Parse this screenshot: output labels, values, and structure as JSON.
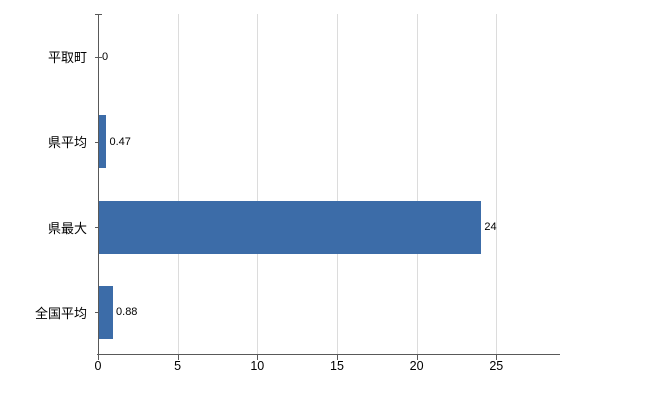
{
  "chart_data": {
    "type": "bar",
    "orientation": "horizontal",
    "title": "",
    "xlabel": "",
    "ylabel": "",
    "categories": [
      "平取町",
      "県平均",
      "県最大",
      "全国平均"
    ],
    "values": [
      0,
      0.47,
      24,
      0.88
    ],
    "value_labels": [
      "0",
      "0.47",
      "24",
      "0.88"
    ],
    "xlim": [
      0,
      29
    ],
    "xticks": [
      0,
      5,
      10,
      15,
      20,
      25
    ],
    "bar_color": "#3c6ca8",
    "grid": true,
    "legend": false,
    "background_color": "#ffffff"
  }
}
